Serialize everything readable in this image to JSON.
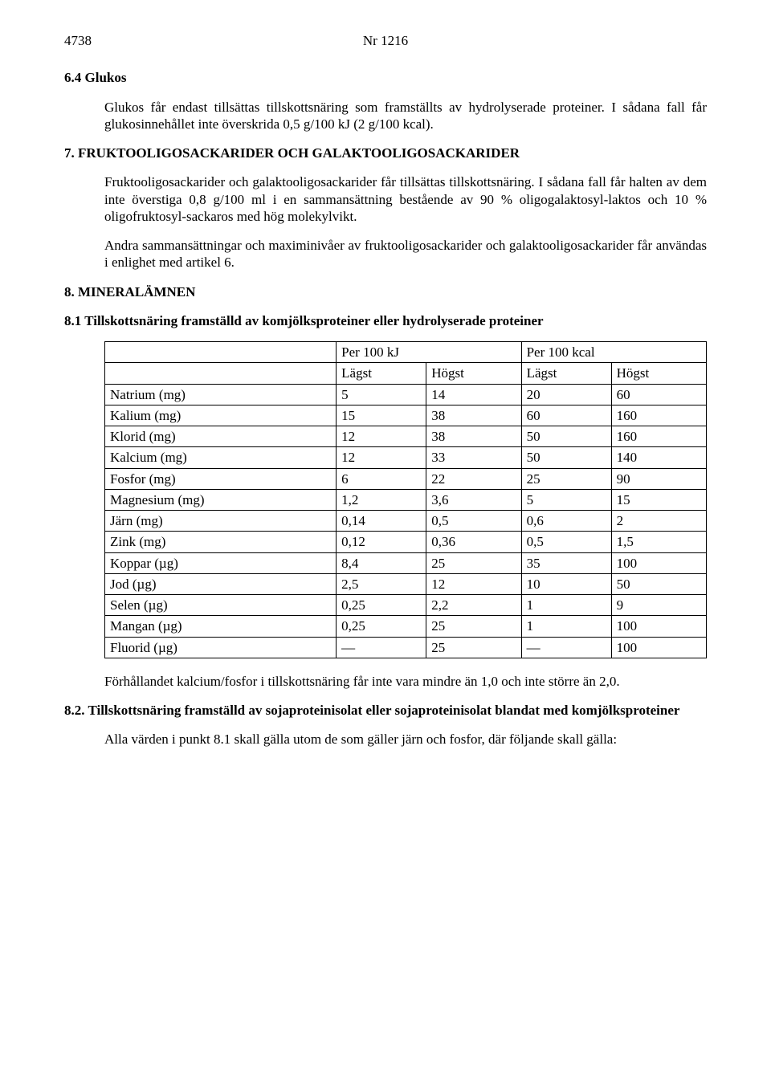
{
  "header": {
    "page_number": "4738",
    "doc_number": "Nr 1216"
  },
  "s64": {
    "heading": "6.4 Glukos",
    "para": "Glukos får endast tillsättas tillskottsnäring som framställts av hydrolyserade proteiner. I sådana fall får glukosinnehållet inte överskrida 0,5 g/100 kJ (2 g/100 kcal)."
  },
  "s7": {
    "heading": "7. FRUKTOOLIGOSACKARIDER OCH GALAKTOOLIGOSACKARIDER",
    "para1": "Fruktooligosackarider och galaktooligosackarider får tillsättas tillskottsnäring. I sådana fall får halten av dem inte överstiga 0,8 g/100 ml i en sammansättning bestående av 90 % oligogalaktosyl-laktos och 10 % oligofruktosyl-sackaros med hög molekylvikt.",
    "para2": "Andra sammansättningar och maximinivåer av fruktooligosackarider och galaktooligosackarider får användas i enlighet med artikel 6."
  },
  "s8": {
    "heading": "8. MINERALÄMNEN"
  },
  "s81": {
    "heading": "8.1 Tillskottsnäring framställd av komjölksproteiner eller hydrolyserade proteiner",
    "table": {
      "top_headers": {
        "col1": "",
        "col2": "Per 100 kJ",
        "col3": "Per 100 kcal"
      },
      "sub_headers": {
        "h1": "Lägst",
        "h2": "Högst",
        "h3": "Lägst",
        "h4": "Högst"
      },
      "rows": [
        {
          "name": "Natrium (mg)",
          "c1": "5",
          "c2": "14",
          "c3": "20",
          "c4": "60"
        },
        {
          "name": "Kalium (mg)",
          "c1": "15",
          "c2": "38",
          "c3": "60",
          "c4": "160"
        },
        {
          "name": "Klorid (mg)",
          "c1": "12",
          "c2": "38",
          "c3": "50",
          "c4": "160"
        },
        {
          "name": "Kalcium (mg)",
          "c1": "12",
          "c2": "33",
          "c3": "50",
          "c4": "140"
        },
        {
          "name": "Fosfor (mg)",
          "c1": "6",
          "c2": "22",
          "c3": "25",
          "c4": "90"
        },
        {
          "name": "Magnesium (mg)",
          "c1": "1,2",
          "c2": "3,6",
          "c3": "5",
          "c4": "15"
        },
        {
          "name": "Järn (mg)",
          "c1": "0,14",
          "c2": "0,5",
          "c3": "0,6",
          "c4": "2"
        },
        {
          "name": "Zink (mg)",
          "c1": "0,12",
          "c2": "0,36",
          "c3": "0,5",
          "c4": "1,5"
        },
        {
          "name": "Koppar (µg)",
          "c1": "8,4",
          "c2": "25",
          "c3": "35",
          "c4": "100"
        },
        {
          "name": "Jod (µg)",
          "c1": "2,5",
          "c2": "12",
          "c3": "10",
          "c4": "50"
        },
        {
          "name": "Selen (µg)",
          "c1": "0,25",
          "c2": "2,2",
          "c3": "1",
          "c4": "9"
        },
        {
          "name": "Mangan (µg)",
          "c1": "0,25",
          "c2": "25",
          "c3": "1",
          "c4": "100"
        },
        {
          "name": "Fluorid (µg)",
          "c1": "—",
          "c2": "25",
          "c3": "—",
          "c4": "100"
        }
      ]
    },
    "post_para": "Förhållandet kalcium/fosfor i tillskottsnäring får inte vara mindre än 1,0 och inte större än 2,0."
  },
  "s82": {
    "heading": "8.2. Tillskottsnäring framställd av sojaproteinisolat eller sojaproteinisolat blandat med komjölksproteiner",
    "para": "Alla värden i punkt 8.1 skall gälla utom de som gäller järn och fosfor, där följande skall gälla:"
  }
}
